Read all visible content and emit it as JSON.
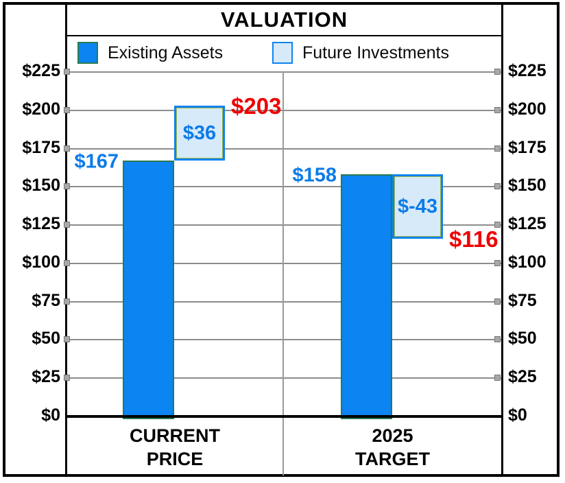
{
  "chart_data": {
    "type": "bar",
    "subtype": "waterfall-stacked",
    "title": "VALUATION",
    "legend": [
      {
        "label": "Existing Assets",
        "color": "#0c84f2"
      },
      {
        "label": "Future Investments",
        "color": "#d7eafa"
      }
    ],
    "y_axis": {
      "min": 0,
      "max": 225,
      "step": 25,
      "tick_labels": [
        "$225",
        "$200",
        "$175",
        "$150",
        "$125",
        "$100",
        "$75",
        "$50",
        "$25",
        "$0"
      ],
      "labels_on_both_sides": true
    },
    "groups": [
      {
        "category_lines": [
          "CURRENT",
          "PRICE"
        ],
        "existing_value": 167,
        "existing_label": "$167",
        "future_value": 36,
        "future_label": "$36",
        "total_value": 203,
        "total_label": "$203"
      },
      {
        "category_lines": [
          "2025",
          "TARGET"
        ],
        "existing_value": 158,
        "existing_label": "$158",
        "future_value": -43,
        "future_label": "$-43",
        "total_value": 116,
        "total_label": "$116"
      }
    ],
    "colors": {
      "existing_fill": "#0c84f2",
      "existing_border": "#2a7a50",
      "future_fill": "#d7eafa",
      "future_border": "#0c84f2",
      "future_border_inner": "#a8b838",
      "value_label_blue": "#0b7be8",
      "total_label_red": "#ee0000",
      "gridline": "#8c8c8c"
    },
    "grid": true,
    "legend_position": "top"
  }
}
